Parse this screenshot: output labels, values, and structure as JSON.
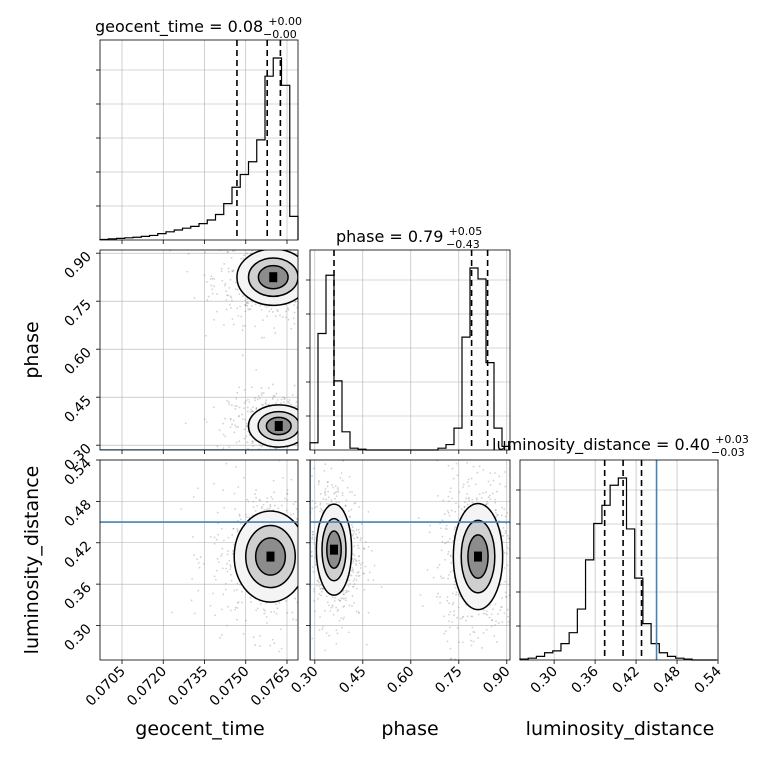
{
  "chart_data": {
    "type": "corner",
    "parameters": [
      "geocent_time",
      "phase",
      "luminosity_distance"
    ],
    "axis_labels": {
      "x": [
        "geocent_time",
        "phase",
        "luminosity_distance"
      ],
      "y": [
        "phase",
        "luminosity_distance"
      ]
    },
    "titles": [
      "geocent_time = 0.08$^{+0.00}_{-0.00}$",
      "phase = 0.79$^{+0.05}_{-0.43}$",
      "luminosity_distance = 0.40$^{+0.03}_{-0.03}$"
    ],
    "title_parts": [
      {
        "main": "geocent_time = 0.08",
        "sup": "+0.00",
        "sub": "−0.00"
      },
      {
        "main": "phase = 0.79",
        "sup": "+0.05",
        "sub": "−0.43"
      },
      {
        "main": "luminosity_distance = 0.40",
        "sup": "+0.03",
        "sub": "−0.03"
      }
    ],
    "ranges": {
      "geocent_time": [
        0.0697,
        0.0769
      ],
      "phase": [
        0.285,
        0.91
      ],
      "luminosity_distance": [
        0.25,
        0.54
      ]
    },
    "ticks": {
      "geocent_time": [
        0.0705,
        0.072,
        0.0735,
        0.075,
        0.0765
      ],
      "geocent_time_labels": [
        "0.0705",
        "0.0720",
        "0.0735",
        "0.0750",
        "0.0765"
      ],
      "phase_x": [
        0.3,
        0.45,
        0.6,
        0.75,
        0.9
      ],
      "phase_x_labels": [
        "0.30",
        "0.45",
        "0.60",
        "0.75",
        "0.90"
      ],
      "phase_y": [
        0.3,
        0.45,
        0.6,
        0.75,
        0.9
      ],
      "phase_y_labels": [
        "0.30",
        "0.45",
        "0.60",
        "0.75",
        "0.90"
      ],
      "luminosity_distance_x": [
        0.3,
        0.36,
        0.42,
        0.48,
        0.54
      ],
      "luminosity_distance_x_labels": [
        "0.30",
        "0.36",
        "0.42",
        "0.48",
        "0.54"
      ],
      "luminosity_distance_y": [
        0.3,
        0.36,
        0.42,
        0.48,
        0.54
      ],
      "luminosity_distance_y_labels": [
        "0.30",
        "0.36",
        "0.42",
        "0.48",
        "0.54"
      ]
    },
    "histograms": {
      "geocent_time": {
        "bin_edges": [
          0.0697,
          0.07,
          0.0703,
          0.0706,
          0.0709,
          0.0712,
          0.0715,
          0.0718,
          0.0721,
          0.0724,
          0.0727,
          0.073,
          0.0733,
          0.0736,
          0.0739,
          0.0742,
          0.0745,
          0.0748,
          0.0751,
          0.0754,
          0.0757,
          0.076,
          0.0763,
          0.0766,
          0.0769
        ],
        "counts": [
          0.003,
          0.006,
          0.009,
          0.012,
          0.015,
          0.02,
          0.025,
          0.035,
          0.045,
          0.055,
          0.065,
          0.075,
          0.09,
          0.11,
          0.14,
          0.2,
          0.29,
          0.36,
          0.43,
          0.55,
          0.9,
          1.0,
          0.85,
          0.13
        ],
        "quantiles": [
          0.07468,
          0.07578,
          0.07626
        ]
      },
      "phase": {
        "bin_edges": [
          0.285,
          0.31,
          0.335,
          0.36,
          0.385,
          0.41,
          0.435,
          0.46,
          0.485,
          0.51,
          0.535,
          0.56,
          0.585,
          0.61,
          0.635,
          0.66,
          0.685,
          0.71,
          0.735,
          0.76,
          0.785,
          0.81,
          0.835,
          0.86,
          0.885,
          0.91
        ],
        "counts": [
          0.04,
          0.64,
          0.96,
          0.38,
          0.1,
          0.01,
          0.004,
          0.0,
          0.0,
          0.0,
          0.0,
          0.0,
          0.0,
          0.0,
          0.0,
          0.0,
          0.01,
          0.03,
          0.12,
          0.62,
          1.0,
          0.94,
          0.48,
          0.12,
          0.02
        ],
        "quantiles": [
          0.36,
          0.79,
          0.84
        ]
      },
      "luminosity_distance": {
        "bin_edges": [
          0.25,
          0.262,
          0.274,
          0.286,
          0.298,
          0.31,
          0.322,
          0.334,
          0.346,
          0.358,
          0.37,
          0.382,
          0.394,
          0.406,
          0.418,
          0.43,
          0.442,
          0.454,
          0.466,
          0.478,
          0.49,
          0.502,
          0.514,
          0.526,
          0.538
        ],
        "counts": [
          0.005,
          0.01,
          0.02,
          0.04,
          0.05,
          0.09,
          0.15,
          0.28,
          0.55,
          0.75,
          0.85,
          0.96,
          1.0,
          0.72,
          0.45,
          0.2,
          0.09,
          0.04,
          0.02,
          0.01,
          0.005,
          0.0,
          0.0,
          0.0
        ],
        "quantiles": [
          0.374,
          0.401,
          0.428
        ]
      }
    },
    "truth": {
      "geocent_time": null,
      "phase": 0.285,
      "luminosity_distance": 0.45
    },
    "density_modes": [
      {
        "panel": "phase_vs_geocent_time",
        "center": [
          0.076,
          0.825
        ],
        "spread": [
          0.0006,
          0.04
        ]
      },
      {
        "panel": "phase_vs_geocent_time",
        "center": [
          0.0762,
          0.36
        ],
        "spread": [
          0.0005,
          0.03
        ]
      },
      {
        "panel": "luminosity_distance_vs_geocent_time",
        "center": [
          0.0759,
          0.4
        ],
        "spread": [
          0.0006,
          0.03
        ]
      },
      {
        "panel": "luminosity_distance_vs_phase",
        "center": [
          0.36,
          0.41
        ],
        "spread": [
          0.025,
          0.03
        ]
      },
      {
        "panel": "luminosity_distance_vs_phase",
        "center": [
          0.81,
          0.4
        ],
        "spread": [
          0.035,
          0.035
        ]
      }
    ],
    "grid": true,
    "colors": {
      "line": "#000000",
      "truth": "#4682b4",
      "grid": "#b0b0b0",
      "points": "#7f7f7f"
    }
  }
}
